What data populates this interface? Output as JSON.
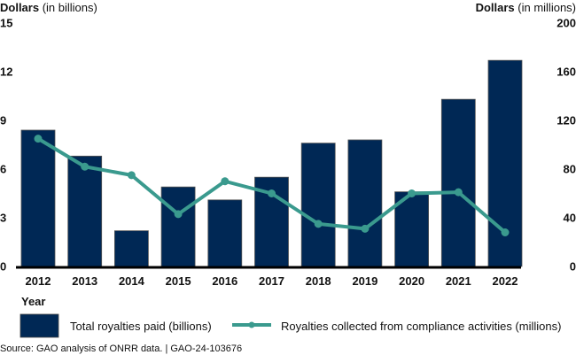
{
  "chart_data": {
    "type": "bar",
    "title": "",
    "xlabel": "Year",
    "categories": [
      "2012",
      "2013",
      "2014",
      "2015",
      "2016",
      "2017",
      "2018",
      "2019",
      "2020",
      "2021",
      "2022"
    ],
    "left_axis": {
      "label_bold": "Dollars",
      "label_rest": " (in billions)",
      "ylim": [
        0,
        15
      ],
      "ticks": [
        "0",
        "3",
        "6",
        "9",
        "12",
        "15"
      ]
    },
    "right_axis": {
      "label_bold": "Dollars",
      "label_rest": " (in millions)",
      "ylim": [
        0,
        200
      ],
      "ticks": [
        "0",
        "40",
        "80",
        "120",
        "160",
        "200"
      ]
    },
    "series": [
      {
        "name": "Total royalties paid (billions)",
        "type": "bar",
        "axis": "left",
        "color": "#002855",
        "values": [
          8.4,
          6.8,
          2.2,
          4.9,
          4.1,
          5.5,
          7.6,
          7.8,
          4.6,
          10.3,
          12.7
        ]
      },
      {
        "name": "Royalties collected from compliance activities (millions)",
        "type": "line",
        "axis": "right",
        "color": "#3a9a8e",
        "values": [
          105,
          82,
          75,
          43,
          70,
          60,
          35,
          31,
          60,
          61,
          28
        ]
      }
    ],
    "grid": false,
    "legend": "bottom"
  },
  "source_note": "Source: GAO analysis of ONRR data.  |  GAO-24-103676"
}
